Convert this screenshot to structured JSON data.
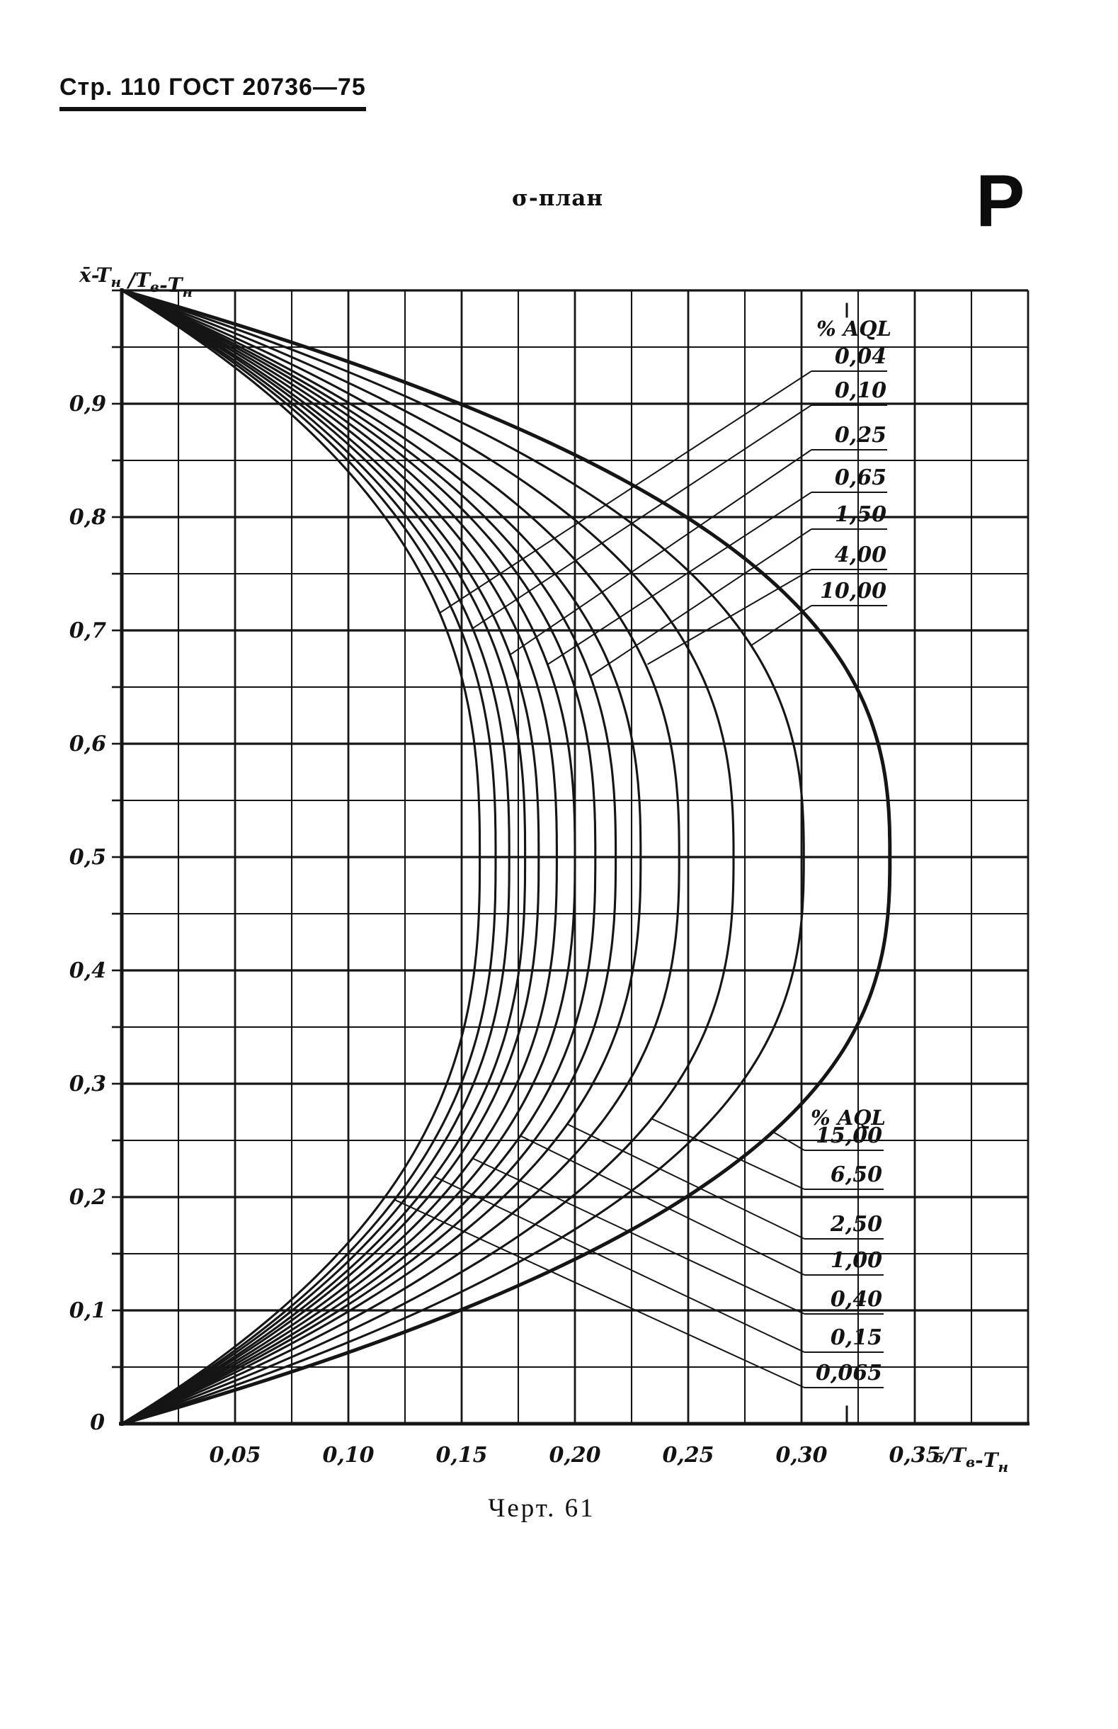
{
  "page": {
    "header": "Стр. 110 ГОСТ 20736—75",
    "corner_letter": "Р",
    "title": "σ-план",
    "caption": "Черт. 61"
  },
  "chart_data": {
    "type": "line",
    "title": "σ-план",
    "x_axis": {
      "label": "σ/Tв-Tн",
      "label_segments": [
        [
          "ϭ/T",
          0
        ],
        [
          "в",
          1
        ],
        [
          "-T",
          0
        ],
        [
          "н",
          1
        ]
      ],
      "range": [
        0,
        0.4
      ],
      "grid_step": 0.025,
      "tick_values": [
        0.05,
        0.1,
        0.15,
        0.2,
        0.25,
        0.3,
        0.35
      ],
      "tick_labels": [
        "0,05",
        "0,10",
        "0,15",
        "0,20",
        "0,25",
        "0,30",
        "0,35"
      ],
      "origin_label": "0"
    },
    "y_axis": {
      "label": "x̄-Tн/Tв-Tн",
      "label_segments": [
        [
          "x̄-T",
          0
        ],
        [
          "н",
          1
        ],
        " ",
        [
          "/T",
          0
        ],
        [
          "в",
          1
        ],
        [
          "-T",
          0
        ],
        [
          "н",
          1
        ]
      ],
      "range": [
        0,
        1.0
      ],
      "grid_step": 0.05,
      "tick_values": [
        0.9,
        0.8,
        0.7,
        0.6,
        0.5,
        0.4,
        0.3,
        0.2,
        0.1
      ],
      "tick_labels": [
        "0,9",
        "0,8",
        "0,7",
        "0,6",
        "0,5",
        "0,4",
        "0,3",
        "0,2",
        "0,1"
      ]
    },
    "grid": {
      "on": true,
      "x_step": 0.025,
      "y_step": 0.05,
      "x_major_every": 2,
      "y_major_every": 2
    },
    "curve_model": {
      "formula": "x = sigma_max * (1 - |2y-1|^p), symmetric about y=0.5",
      "p": 2.6
    },
    "series": [
      {
        "aql": "0,04",
        "sigma_max": 0.158,
        "bold": false
      },
      {
        "aql": "0,065",
        "sigma_max": 0.165,
        "bold": false
      },
      {
        "aql": "0,10",
        "sigma_max": 0.171,
        "bold": false
      },
      {
        "aql": "0,15",
        "sigma_max": 0.178,
        "bold": false
      },
      {
        "aql": "0,25",
        "sigma_max": 0.184,
        "bold": false
      },
      {
        "aql": "0,40",
        "sigma_max": 0.192,
        "bold": false
      },
      {
        "aql": "0,65",
        "sigma_max": 0.2,
        "bold": false
      },
      {
        "aql": "1,00",
        "sigma_max": 0.209,
        "bold": false
      },
      {
        "aql": "1,50",
        "sigma_max": 0.218,
        "bold": false
      },
      {
        "aql": "2,50",
        "sigma_max": 0.229,
        "bold": false
      },
      {
        "aql": "4,00",
        "sigma_max": 0.246,
        "bold": false
      },
      {
        "aql": "6,50",
        "sigma_max": 0.27,
        "bold": false
      },
      {
        "aql": "10,00",
        "sigma_max": 0.301,
        "bold": false
      },
      {
        "aql": "15,00",
        "sigma_max": 0.339,
        "bold": true
      }
    ],
    "legend_upper": {
      "title": "% AQL",
      "entries": [
        {
          "label": "0,04",
          "leader_end": [
            0.14,
            0.715
          ]
        },
        {
          "label": "0,10",
          "leader_end": [
            0.155,
            0.702
          ]
        },
        {
          "label": "0,25",
          "leader_end": [
            0.171,
            0.678
          ]
        },
        {
          "label": "0,65",
          "leader_end": [
            0.188,
            0.67
          ]
        },
        {
          "label": "1,50",
          "leader_end": [
            0.207,
            0.66
          ]
        },
        {
          "label": "4,00",
          "leader_end": [
            0.232,
            0.67
          ]
        },
        {
          "label": "10,00",
          "leader_end": [
            0.278,
            0.687
          ]
        }
      ]
    },
    "legend_lower": {
      "title": "% AQL",
      "entries": [
        {
          "label": "15,00",
          "leader_end": [
            0.287,
            0.258
          ]
        },
        {
          "label": "6,50",
          "leader_end": [
            0.234,
            0.269
          ]
        },
        {
          "label": "2,50",
          "leader_end": [
            0.197,
            0.264
          ]
        },
        {
          "label": "1,00",
          "leader_end": [
            0.176,
            0.254
          ]
        },
        {
          "label": "0,40",
          "leader_end": [
            0.155,
            0.234
          ]
        },
        {
          "label": "0,15",
          "leader_end": [
            0.138,
            0.218
          ]
        },
        {
          "label": "0,065",
          "leader_end": [
            0.12,
            0.198
          ]
        }
      ]
    },
    "stray_marks": [
      {
        "x": 0.32,
        "y1": 0.976,
        "y2": 0.989
      },
      {
        "x": 0.32,
        "y1": 0.001,
        "y2": 0.016
      }
    ]
  }
}
